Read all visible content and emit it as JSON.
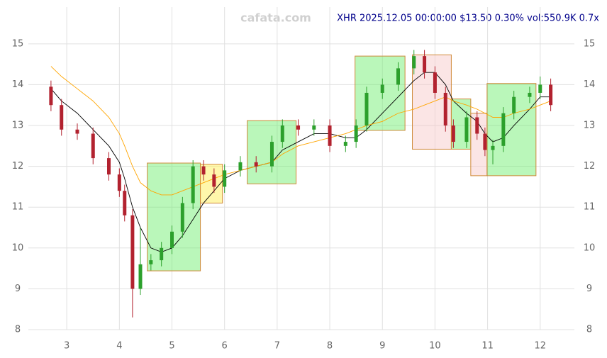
{
  "chart_data": {
    "type": "candlestick",
    "title": "XHR 2025.12.05 00:00:00 $13.50 0.30% vol:550.9K 0.7x",
    "watermark": "cafata.com",
    "x": [
      2.7,
      2.9,
      3.2,
      3.5,
      3.8,
      4.0,
      4.1,
      4.25,
      4.4,
      4.6,
      4.8,
      5.0,
      5.2,
      5.4,
      5.6,
      5.8,
      6.0,
      6.3,
      6.6,
      6.9,
      7.1,
      7.4,
      7.7,
      8.0,
      8.3,
      8.5,
      8.7,
      9.0,
      9.3,
      9.6,
      9.8,
      10.0,
      10.2,
      10.35,
      10.6,
      10.8,
      10.95,
      11.1,
      11.3,
      11.5,
      11.8,
      12.0,
      12.2
    ],
    "open": [
      13.95,
      13.5,
      12.9,
      12.8,
      12.2,
      11.8,
      11.4,
      10.8,
      9.0,
      9.6,
      9.7,
      10.0,
      10.4,
      11.1,
      12.0,
      11.8,
      11.5,
      11.9,
      12.1,
      12.0,
      12.6,
      13.0,
      12.9,
      13.0,
      12.5,
      12.6,
      13.0,
      13.8,
      14.0,
      14.4,
      14.7,
      14.3,
      13.8,
      13.0,
      12.6,
      13.2,
      12.8,
      12.4,
      12.5,
      13.3,
      13.7,
      13.8,
      14.0
    ],
    "high": [
      14.1,
      13.65,
      13.05,
      12.95,
      12.35,
      11.95,
      11.55,
      10.95,
      10.5,
      9.85,
      10.15,
      10.55,
      11.25,
      12.15,
      12.15,
      11.95,
      12.05,
      12.25,
      12.25,
      12.75,
      13.15,
      13.15,
      13.15,
      13.15,
      12.75,
      13.15,
      13.95,
      14.15,
      14.55,
      14.85,
      14.85,
      14.45,
      13.95,
      13.15,
      13.35,
      13.35,
      12.95,
      12.65,
      13.45,
      13.85,
      13.95,
      14.2,
      14.15
    ],
    "low": [
      13.35,
      12.75,
      12.65,
      12.05,
      11.65,
      11.25,
      10.65,
      8.3,
      8.85,
      9.45,
      9.55,
      9.85,
      10.25,
      10.95,
      11.65,
      11.35,
      11.35,
      11.75,
      11.85,
      11.85,
      12.45,
      12.75,
      12.75,
      12.35,
      12.35,
      12.45,
      12.85,
      13.65,
      13.85,
      14.25,
      14.15,
      13.65,
      12.85,
      12.45,
      12.45,
      12.65,
      12.25,
      12.05,
      12.35,
      13.15,
      13.55,
      13.65,
      13.35
    ],
    "close": [
      13.5,
      12.9,
      12.8,
      12.2,
      11.8,
      11.4,
      10.8,
      9.0,
      9.6,
      9.7,
      10.0,
      10.4,
      11.1,
      12.0,
      11.8,
      11.5,
      11.9,
      12.1,
      12.0,
      12.6,
      13.0,
      12.9,
      13.0,
      12.5,
      12.6,
      13.0,
      13.8,
      14.0,
      14.4,
      14.7,
      14.3,
      13.8,
      13.0,
      12.6,
      13.2,
      12.8,
      12.4,
      12.5,
      13.3,
      13.7,
      13.8,
      14.0,
      13.5
    ],
    "up_color": "#2ca02c",
    "down_color": "#b2222f",
    "lines": [
      {
        "color": "#000000",
        "values": [
          13.9,
          13.6,
          13.3,
          12.9,
          12.5,
          12.1,
          11.7,
          11.0,
          10.5,
          10.0,
          9.9,
          10.0,
          10.3,
          10.7,
          11.1,
          11.4,
          11.7,
          11.9,
          12.0,
          12.1,
          12.4,
          12.6,
          12.8,
          12.8,
          12.7,
          12.7,
          12.9,
          13.3,
          13.7,
          14.1,
          14.3,
          14.3,
          14.0,
          13.6,
          13.3,
          13.1,
          12.8,
          12.6,
          12.7,
          13.0,
          13.4,
          13.7,
          13.7
        ]
      },
      {
        "color": "#ffa500",
        "values": [
          14.45,
          14.2,
          13.9,
          13.6,
          13.2,
          12.8,
          12.5,
          12.0,
          11.6,
          11.4,
          11.3,
          11.3,
          11.4,
          11.5,
          11.6,
          11.7,
          11.8,
          11.9,
          12.0,
          12.1,
          12.3,
          12.5,
          12.6,
          12.7,
          12.8,
          12.9,
          13.0,
          13.1,
          13.3,
          13.4,
          13.5,
          13.6,
          13.7,
          13.6,
          13.5,
          13.4,
          13.3,
          13.2,
          13.2,
          13.3,
          13.4,
          13.5,
          13.6
        ]
      }
    ],
    "boxes": [
      {
        "x0": 4.53,
        "x1": 5.54,
        "low": 9.44,
        "high": 12.08,
        "color": "#66ee66"
      },
      {
        "x0": 5.54,
        "x1": 5.96,
        "low": 11.1,
        "high": 12.05,
        "color": "#ffee44"
      },
      {
        "x0": 6.43,
        "x1": 7.36,
        "low": 11.57,
        "high": 13.12,
        "color": "#66ee66"
      },
      {
        "x0": 8.48,
        "x1": 9.43,
        "low": 12.88,
        "high": 14.7,
        "color": "#66ee66"
      },
      {
        "x0": 9.57,
        "x1": 10.31,
        "low": 12.42,
        "high": 14.73,
        "color": "#f6c6c6"
      },
      {
        "x0": 10.31,
        "x1": 10.68,
        "low": 12.42,
        "high": 13.65,
        "color": "#66ee66"
      },
      {
        "x0": 10.68,
        "x1": 10.99,
        "low": 11.77,
        "high": 13.3,
        "color": "#f6c6c6"
      },
      {
        "x0": 10.99,
        "x1": 11.92,
        "low": 11.77,
        "high": 14.03,
        "color": "#66ee66"
      }
    ],
    "xlim": [
      2.27,
      12.65
    ],
    "xticks": [
      3,
      4,
      5,
      6,
      7,
      8,
      9,
      10,
      11,
      12
    ],
    "ylim": [
      8,
      15.9
    ],
    "yticks": [
      8,
      9,
      10,
      11,
      12,
      13,
      14,
      15
    ],
    "grid": true
  }
}
